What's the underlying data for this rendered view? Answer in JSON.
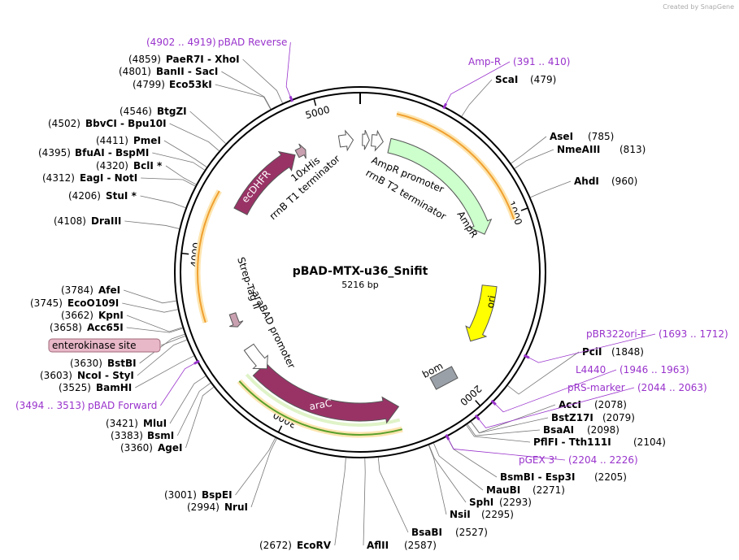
{
  "credit": "Created by SnapGene",
  "map": {
    "name": "pBAD-MTX-u36_Snifit",
    "length": "5216 bp",
    "ticks": [
      "1000",
      "2000",
      "3000",
      "4000",
      "5000"
    ],
    "enzymes": [
      {
        "name": "PaeR7I - XhoI",
        "position": "(4859)"
      },
      {
        "name": "BanII - SacI",
        "position": "(4801)"
      },
      {
        "name": "Eco53kI",
        "position": "(4799)"
      },
      {
        "name": "BtgZI",
        "position": "(4546)"
      },
      {
        "name": "BbvCI - Bpu10I",
        "position": "(4502)"
      },
      {
        "name": "PmeI",
        "position": "(4411)"
      },
      {
        "name": "BfuAI - BspMI",
        "position": "(4395)"
      },
      {
        "name": "BclI *",
        "position": "(4320)"
      },
      {
        "name": "EagI - NotI",
        "position": "(4312)"
      },
      {
        "name": "StuI *",
        "position": "(4206)"
      },
      {
        "name": "DraIII",
        "position": "(4108)"
      },
      {
        "name": "AfeI",
        "position": "(3784)"
      },
      {
        "name": "EcoO109I",
        "position": "(3745)"
      },
      {
        "name": "KpnI",
        "position": "(3662)"
      },
      {
        "name": "Acc65I",
        "position": "(3658)"
      },
      {
        "name": "BstBI",
        "position": "(3630)"
      },
      {
        "name": "NcoI - StyI",
        "position": "(3603)"
      },
      {
        "name": "BamHI",
        "position": "(3525)"
      },
      {
        "name": "MluI",
        "position": "(3421)"
      },
      {
        "name": "BsmI",
        "position": "(3383)"
      },
      {
        "name": "AgeI",
        "position": "(3360)"
      },
      {
        "name": "BspEI",
        "position": "(3001)"
      },
      {
        "name": "NruI",
        "position": "(2994)"
      },
      {
        "name": "EcoRV",
        "position": "(2672)"
      },
      {
        "name": "ScaI",
        "position": "(479)"
      },
      {
        "name": "AseI",
        "position": "(785)"
      },
      {
        "name": "NmeAIII",
        "position": "(813)"
      },
      {
        "name": "AhdI",
        "position": "(960)"
      },
      {
        "name": "PciI",
        "position": "(1848)"
      },
      {
        "name": "AccI",
        "position": "(2078)"
      },
      {
        "name": "BstZ17I",
        "position": "(2079)"
      },
      {
        "name": "BsaAI",
        "position": "(2098)"
      },
      {
        "name": "PflFI - Tth111I",
        "position": "(2104)"
      },
      {
        "name": "BsmBI - Esp3I",
        "position": "(2205)"
      },
      {
        "name": "MauBI",
        "position": "(2271)"
      },
      {
        "name": "SphI",
        "position": "(2293)"
      },
      {
        "name": "NsiI",
        "position": "(2295)"
      },
      {
        "name": "BsaBI",
        "position": "(2527)"
      },
      {
        "name": "AflII",
        "position": "(2587)"
      }
    ],
    "primers": [
      {
        "name": "pBAD Reverse",
        "range": "(4902 .. 4919)"
      },
      {
        "name": "Amp-R",
        "range": "(391 .. 410)"
      },
      {
        "name": "pBR322ori-F",
        "range": "(1693 .. 1712)"
      },
      {
        "name": "L4440",
        "range": "(1946 .. 1963)"
      },
      {
        "name": "pRS-marker",
        "range": "(2044 .. 2063)"
      },
      {
        "name": "pGEX 3'",
        "range": "(2204 .. 2226)"
      },
      {
        "name": "pBAD Forward",
        "range": "(3494 .. 3513)"
      }
    ],
    "site": "enterokinase site",
    "features": [
      "AmpR promoter",
      "rrnB T2 terminator",
      "AmpR",
      "ori",
      "bom",
      "araC",
      "araBAD promoter",
      "Strep-Tag II",
      "ecDHFR",
      "10xHis",
      "rrnB T1 terminator"
    ]
  }
}
